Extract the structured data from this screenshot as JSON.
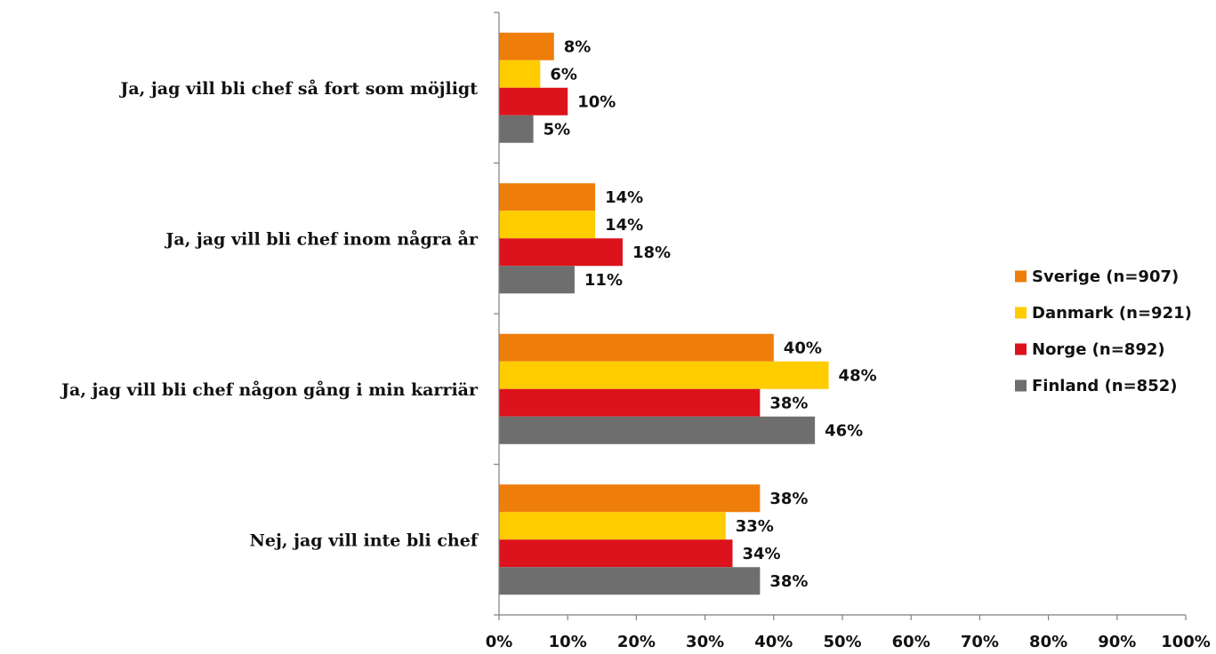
{
  "chart_data": {
    "type": "bar",
    "orientation": "horizontal",
    "categories": [
      "Ja, jag vill bli chef så fort som möjligt",
      "Ja, jag vill bli chef inom några år",
      "Ja, jag vill bli chef någon gång i min karriär",
      "Nej, jag vill inte bli chef"
    ],
    "series": [
      {
        "name": "Sverige (n=907)",
        "color": "#EE7D0A",
        "values": [
          8,
          14,
          40,
          38
        ]
      },
      {
        "name": "Danmark (n=921)",
        "color": "#FFCC00",
        "values": [
          6,
          14,
          48,
          33
        ]
      },
      {
        "name": "Norge (n=892)",
        "color": "#DC121C",
        "values": [
          10,
          18,
          38,
          34
        ]
      },
      {
        "name": "Finland (n=852)",
        "color": "#6E6E6E",
        "values": [
          5,
          11,
          46,
          38
        ]
      }
    ],
    "value_suffix": "%",
    "xlim": [
      0,
      100
    ],
    "xticks": [
      "0%",
      "10%",
      "20%",
      "30%",
      "40%",
      "50%",
      "60%",
      "70%",
      "80%",
      "90%",
      "100%"
    ],
    "legend_position": "right",
    "grid": false,
    "title": "",
    "xlabel": "",
    "ylabel": ""
  }
}
